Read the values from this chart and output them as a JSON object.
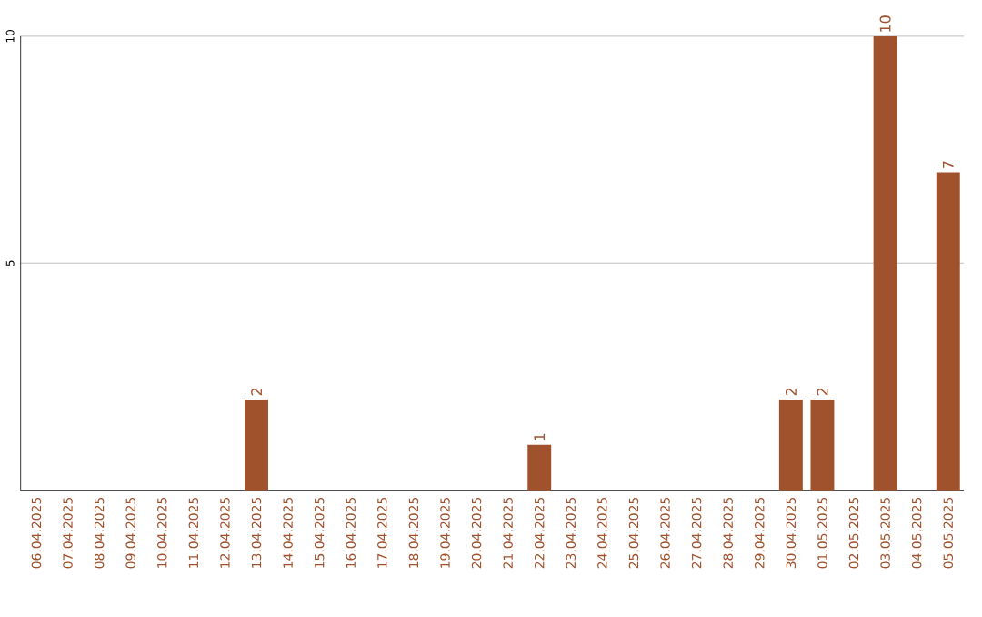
{
  "chart_data": {
    "type": "bar",
    "categories": [
      "06.04.2025",
      "07.04.2025",
      "08.04.2025",
      "09.04.2025",
      "10.04.2025",
      "11.04.2025",
      "12.04.2025",
      "13.04.2025",
      "14.04.2025",
      "15.04.2025",
      "16.04.2025",
      "17.04.2025",
      "18.04.2025",
      "19.04.2025",
      "20.04.2025",
      "21.04.2025",
      "22.04.2025",
      "23.04.2025",
      "24.04.2025",
      "25.04.2025",
      "26.04.2025",
      "27.04.2025",
      "28.04.2025",
      "29.04.2025",
      "30.04.2025",
      "01.05.2025",
      "02.05.2025",
      "03.05.2025",
      "04.05.2025",
      "05.05.2025"
    ],
    "values": [
      0,
      0,
      0,
      0,
      0,
      0,
      0,
      2,
      0,
      0,
      0,
      0,
      0,
      0,
      0,
      0,
      1,
      0,
      0,
      0,
      0,
      0,
      0,
      0,
      2,
      2,
      0,
      10,
      0,
      7
    ],
    "value_labels": [
      null,
      null,
      null,
      null,
      null,
      null,
      null,
      "2",
      null,
      null,
      null,
      null,
      null,
      null,
      null,
      null,
      "1",
      null,
      null,
      null,
      null,
      null,
      null,
      null,
      "2",
      "2",
      null,
      "10",
      null,
      "7"
    ],
    "color": "#a0522d",
    "ylim": [
      0,
      10
    ],
    "yticks": [
      5,
      10
    ],
    "grid": "y"
  }
}
